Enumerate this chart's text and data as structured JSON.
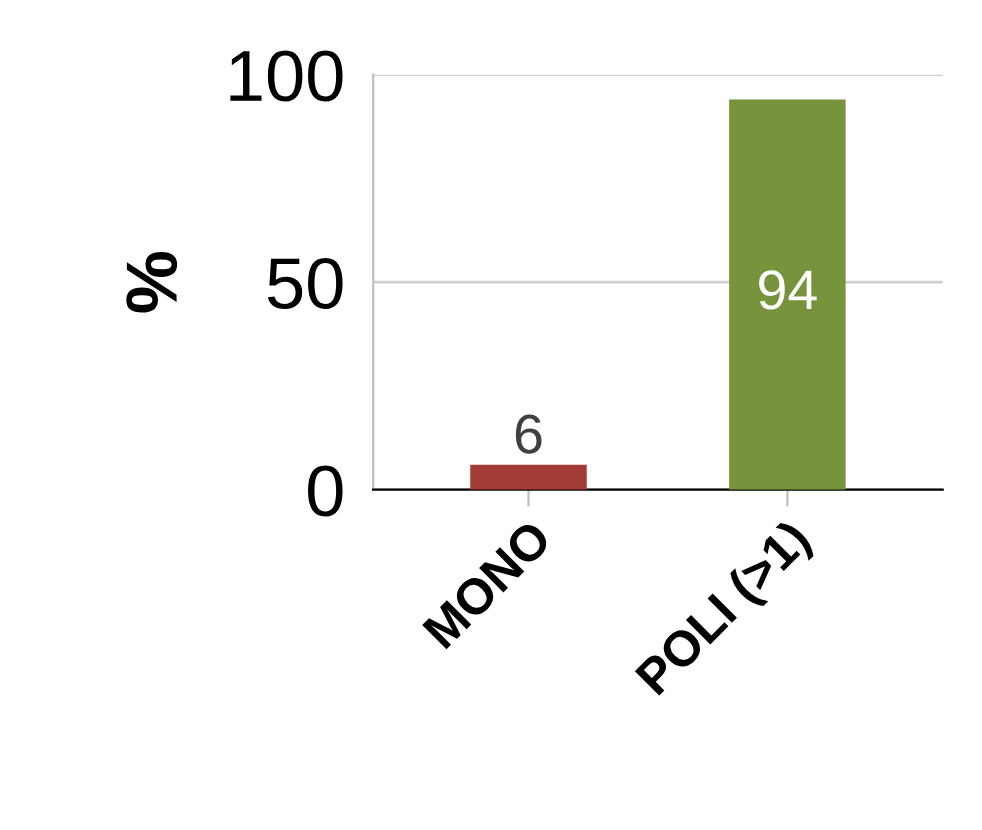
{
  "chart_data": {
    "type": "bar",
    "ylabel": "%",
    "categories": [
      "MONO",
      "POLI (>1)"
    ],
    "values": [
      6,
      94
    ],
    "colors": [
      "#a33b36",
      "#77933c"
    ],
    "ylim": [
      0,
      100
    ],
    "yticks": [
      0,
      50,
      100
    ],
    "grid": "y",
    "data_labels": true
  }
}
